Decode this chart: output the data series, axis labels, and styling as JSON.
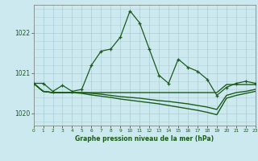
{
  "title": "Graphe pression niveau de la mer (hPa)",
  "background_color": "#cce9f0",
  "grid_color": "#aad4dc",
  "line_color": "#1a5c1a",
  "x_min": 0,
  "x_max": 23,
  "y_min": 1019.7,
  "y_max": 1022.7,
  "y_ticks": [
    1020,
    1021,
    1022
  ],
  "x_ticks": [
    0,
    1,
    2,
    3,
    4,
    5,
    6,
    7,
    8,
    9,
    10,
    11,
    12,
    13,
    14,
    15,
    16,
    17,
    18,
    19,
    20,
    21,
    22,
    23
  ],
  "series1_x": [
    0,
    1,
    2,
    3,
    4,
    5,
    6,
    7,
    8,
    9,
    10,
    11,
    12,
    13,
    14,
    15,
    16,
    17,
    18,
    19,
    20,
    21,
    22,
    23
  ],
  "series1_y": [
    1020.75,
    1020.75,
    1020.55,
    1020.7,
    1020.55,
    1020.6,
    1021.2,
    1021.55,
    1021.6,
    1021.9,
    1022.55,
    1022.25,
    1021.6,
    1020.95,
    1020.75,
    1021.35,
    1021.15,
    1021.05,
    1020.85,
    1020.45,
    1020.65,
    1020.75,
    1020.8,
    1020.75
  ],
  "series2_x": [
    0,
    1,
    2,
    3,
    4,
    5,
    6,
    7,
    8,
    9,
    10,
    11,
    12,
    13,
    14,
    15,
    16,
    17,
    18,
    19,
    20,
    21,
    22,
    23
  ],
  "series2_y": [
    1020.75,
    1020.55,
    1020.52,
    1020.52,
    1020.52,
    1020.52,
    1020.52,
    1020.52,
    1020.52,
    1020.52,
    1020.52,
    1020.52,
    1020.52,
    1020.52,
    1020.52,
    1020.52,
    1020.52,
    1020.52,
    1020.52,
    1020.52,
    1020.72,
    1020.72,
    1020.72,
    1020.72
  ],
  "series3_x": [
    0,
    1,
    2,
    3,
    4,
    5,
    6,
    7,
    8,
    9,
    10,
    11,
    12,
    13,
    14,
    15,
    16,
    17,
    18,
    19,
    20,
    21,
    22,
    23
  ],
  "series3_y": [
    1020.75,
    1020.55,
    1020.52,
    1020.52,
    1020.52,
    1020.52,
    1020.5,
    1020.48,
    1020.45,
    1020.42,
    1020.4,
    1020.38,
    1020.35,
    1020.32,
    1020.3,
    1020.27,
    1020.24,
    1020.2,
    1020.16,
    1020.1,
    1020.45,
    1020.52,
    1020.55,
    1020.6
  ],
  "series4_x": [
    0,
    1,
    2,
    3,
    4,
    5,
    6,
    7,
    8,
    9,
    10,
    11,
    12,
    13,
    14,
    15,
    16,
    17,
    18,
    19,
    20,
    21,
    22,
    23
  ],
  "series4_y": [
    1020.75,
    1020.55,
    1020.52,
    1020.52,
    1020.52,
    1020.5,
    1020.46,
    1020.43,
    1020.4,
    1020.36,
    1020.33,
    1020.3,
    1020.27,
    1020.24,
    1020.2,
    1020.16,
    1020.12,
    1020.08,
    1020.03,
    1019.97,
    1020.38,
    1020.45,
    1020.5,
    1020.55
  ]
}
